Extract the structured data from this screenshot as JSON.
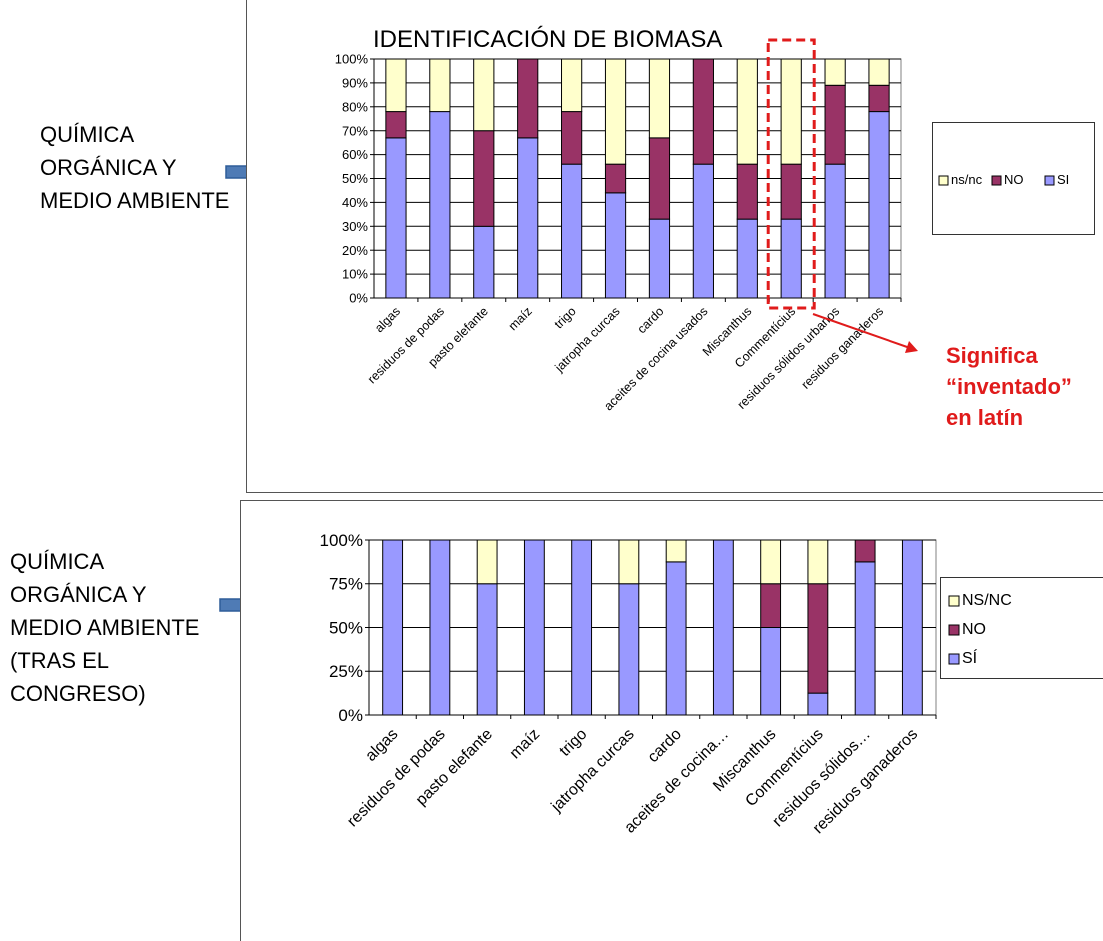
{
  "panels": [
    {
      "label_lines": [
        "QUÍMICA",
        "ORGÁNICA Y",
        "MEDIO AMBIENTE"
      ]
    },
    {
      "label_lines": [
        "QUÍMICA",
        "ORGÁNICA Y",
        "MEDIO AMBIENTE",
        "(TRAS EL",
        "CONGRESO)"
      ]
    }
  ],
  "annotation": {
    "lines": [
      "Significa",
      "“inventado”",
      "en latín"
    ],
    "highlight_category": "Commentícius",
    "color": "#e01b1b"
  },
  "colors": {
    "si": "#9999ff",
    "no": "#993366",
    "nsnc": "#ffffcc",
    "arrow": "#4f7bb5"
  },
  "chart_data": [
    {
      "type": "bar",
      "stacked": true,
      "title": "IDENTIFICACIÓN DE BIOMASA",
      "categories": [
        "algas",
        "residuos de podas",
        "pasto elefante",
        "maíz",
        "trigo",
        "jatropha curcas",
        "cardo",
        "aceites de cocina usados",
        "Miscanthus",
        "Commentícius",
        "residuos sólidos urbanos",
        "residuos ganaderos"
      ],
      "series": [
        {
          "name": "SI",
          "values": [
            67,
            78,
            30,
            67,
            56,
            44,
            33,
            56,
            33,
            33,
            56,
            78
          ]
        },
        {
          "name": "NO",
          "values": [
            11,
            0,
            40,
            33,
            22,
            12,
            34,
            44,
            23,
            23,
            33,
            11
          ]
        },
        {
          "name": "ns/nc",
          "values": [
            22,
            22,
            30,
            0,
            22,
            44,
            33,
            0,
            44,
            44,
            11,
            11
          ]
        }
      ],
      "ylim": [
        0,
        100
      ],
      "yticks": [
        "0%",
        "10%",
        "20%",
        "30%",
        "40%",
        "50%",
        "60%",
        "70%",
        "80%",
        "90%",
        "100%"
      ],
      "legend_order": [
        "ns/nc",
        "NO",
        "SI"
      ],
      "legend_position": "right",
      "grid": true
    },
    {
      "type": "bar",
      "stacked": true,
      "title": "",
      "categories": [
        "algas",
        "residuos de podas",
        "pasto elefante",
        "maíz",
        "trigo",
        "jatropha curcas",
        "cardo",
        "aceites de cocina…",
        "Miscanthus",
        "Commentícius",
        "residuos sólidos…",
        "residuos ganaderos"
      ],
      "series": [
        {
          "name": "SÍ",
          "values": [
            100,
            100,
            75,
            100,
            100,
            75,
            87.5,
            100,
            50,
            12.5,
            87.5,
            100
          ]
        },
        {
          "name": "NO",
          "values": [
            0,
            0,
            0,
            0,
            0,
            0,
            0,
            0,
            25,
            62.5,
            12.5,
            0
          ]
        },
        {
          "name": "NS/NC",
          "values": [
            0,
            0,
            25,
            0,
            0,
            25,
            12.5,
            0,
            25,
            25,
            0,
            0
          ]
        }
      ],
      "ylim": [
        0,
        100
      ],
      "yticks": [
        "0%",
        "25%",
        "50%",
        "75%",
        "100%"
      ],
      "legend_order": [
        "NS/NC",
        "NO",
        "SÍ"
      ],
      "legend_position": "right",
      "grid": true
    }
  ]
}
